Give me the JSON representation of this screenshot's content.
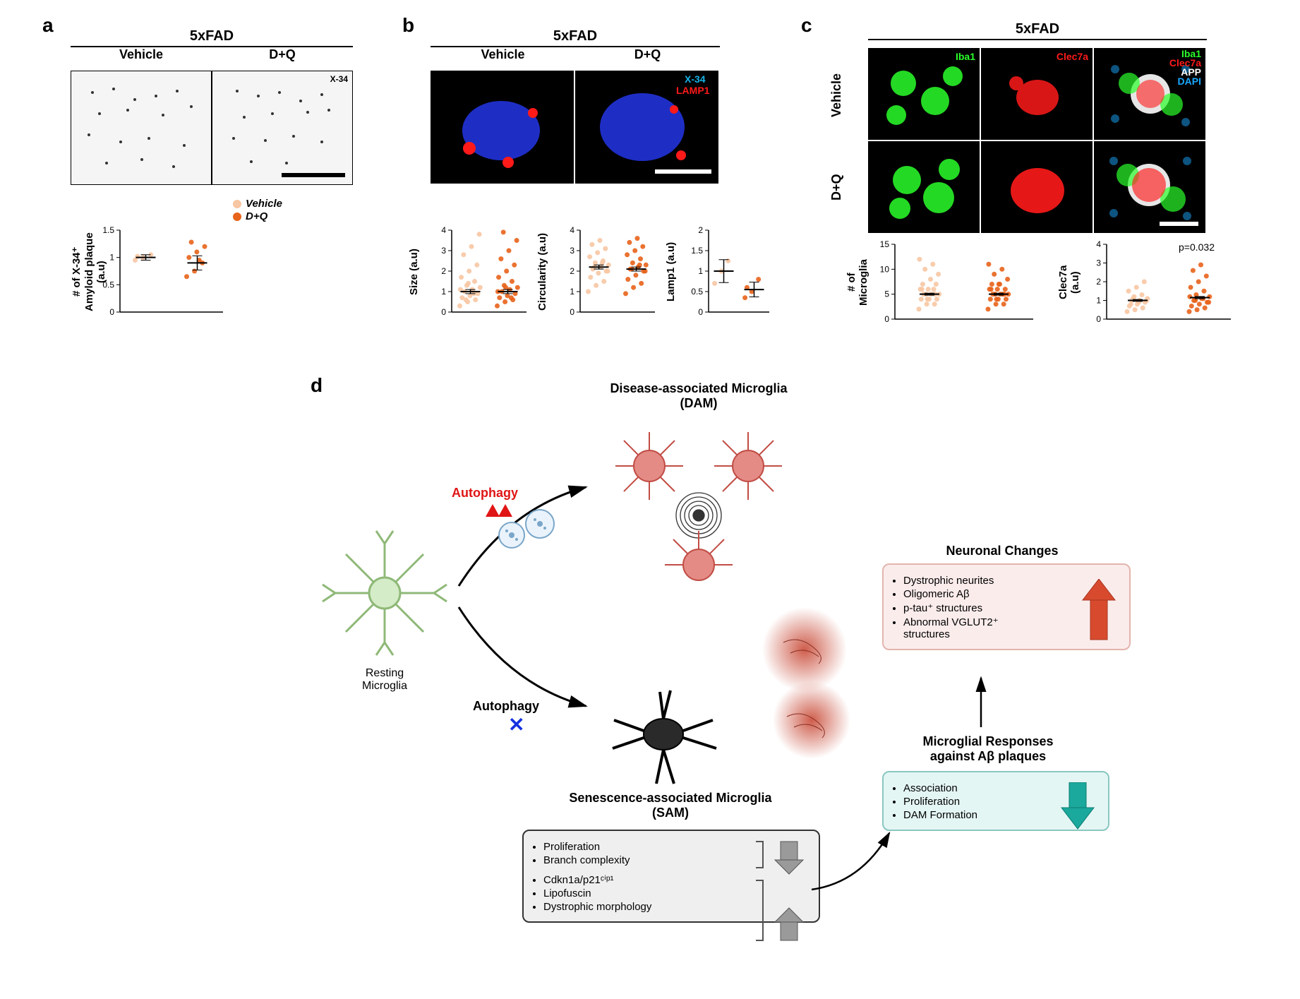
{
  "panelA": {
    "label": "a",
    "title": "5xFAD",
    "conditions": [
      "Vehicle",
      "D+Q"
    ],
    "stain_label": "X-34",
    "legend": {
      "vehicle": {
        "label": "Vehicle",
        "color": "#f7c6a3"
      },
      "dq": {
        "label": "D+Q",
        "color": "#e8631b"
      }
    },
    "chart": {
      "ylabel": "# of X-34⁺\nAmyloid plaque (a.u)",
      "ylim": [
        0,
        1.5
      ],
      "yticks": [
        0,
        0.5,
        1.0,
        1.5
      ],
      "series": [
        {
          "name": "Vehicle",
          "color": "#f7c6a3",
          "mean": 1.0,
          "sem": 0.05,
          "points": [
            0.95,
            1.0,
            1.05,
            1.02
          ]
        },
        {
          "name": "D+Q",
          "color": "#e8631b",
          "mean": 0.9,
          "sem": 0.13,
          "points": [
            0.65,
            0.75,
            0.9,
            1.0,
            1.1,
            1.2,
            1.28,
            0.95
          ]
        }
      ]
    }
  },
  "panelB": {
    "label": "b",
    "title": "5xFAD",
    "conditions": [
      "Vehicle",
      "D+Q"
    ],
    "chan_labels": {
      "x34": {
        "text": "X-34",
        "color": "#15b3e8"
      },
      "lamp1": {
        "text": "LAMP1",
        "color": "#ff1a1a"
      }
    },
    "charts": {
      "size": {
        "ylabel": "Size (a.u)",
        "ylim": [
          0,
          4
        ],
        "yticks": [
          0,
          1,
          2,
          3,
          4
        ],
        "series": [
          {
            "color": "#f7c6a3",
            "mean": 1.0,
            "sem": 0.1,
            "points": [
              0.3,
              0.5,
              0.6,
              0.7,
              0.8,
              0.9,
              1.0,
              1.1,
              1.2,
              1.3,
              1.5,
              1.7,
              2.0,
              2.3,
              2.8,
              3.2,
              3.8,
              0.6,
              0.9,
              1.1,
              1.4
            ]
          },
          {
            "color": "#e8631b",
            "mean": 1.0,
            "sem": 0.1,
            "points": [
              0.3,
              0.5,
              0.6,
              0.7,
              0.8,
              0.9,
              1.0,
              1.1,
              1.2,
              1.3,
              1.5,
              1.7,
              2.0,
              2.3,
              2.6,
              3.0,
              3.5,
              3.9,
              0.7,
              1.0,
              1.2
            ]
          }
        ]
      },
      "circ": {
        "ylabel": "Circularity (a.u)",
        "ylim": [
          0,
          4
        ],
        "yticks": [
          0,
          1,
          2,
          3,
          4
        ],
        "series": [
          {
            "color": "#f7c6a3",
            "mean": 2.2,
            "sem": 0.1,
            "points": [
              1.0,
              1.3,
              1.5,
              1.7,
              1.9,
              2.0,
              2.1,
              2.2,
              2.3,
              2.4,
              2.5,
              2.7,
              2.9,
              3.1,
              3.3,
              3.5,
              2.0,
              2.2,
              2.4
            ]
          },
          {
            "color": "#e8631b",
            "mean": 2.1,
            "sem": 0.1,
            "points": [
              0.9,
              1.2,
              1.4,
              1.6,
              1.8,
              2.0,
              2.1,
              2.2,
              2.3,
              2.4,
              2.6,
              2.8,
              3.0,
              3.2,
              3.4,
              3.6,
              2.0,
              2.1,
              2.3
            ]
          }
        ]
      },
      "lamp1": {
        "ylabel": "Lamp1 (a.u)",
        "ylim": [
          0,
          2.0
        ],
        "yticks": [
          0,
          0.5,
          1.0,
          1.5,
          2.0
        ],
        "series": [
          {
            "color": "#f7c6a3",
            "mean": 1.0,
            "sem": 0.28,
            "points": [
              0.7,
              1.0,
              1.25
            ]
          },
          {
            "color": "#e8631b",
            "mean": 0.55,
            "sem": 0.18,
            "points": [
              0.35,
              0.5,
              0.8,
              0.6
            ]
          }
        ]
      }
    }
  },
  "panelC": {
    "label": "c",
    "title": "5xFAD",
    "row_labels": [
      "Vehicle",
      "D+Q"
    ],
    "col_chan": {
      "iba1": {
        "text": "Iba1",
        "color": "#2bff2b"
      },
      "clec7a": {
        "text": "Clec7a",
        "color": "#ff1a1a"
      },
      "merge": [
        {
          "text": "Iba1",
          "color": "#2bff2b"
        },
        {
          "text": "Clec7a",
          "color": "#ff1a1a"
        },
        {
          "text": "APP",
          "color": "#ffffff"
        },
        {
          "text": "DAPI",
          "color": "#19a7ff"
        }
      ]
    },
    "charts": {
      "microglia": {
        "ylabel": "# of\nMicroglia",
        "ylim": [
          0,
          15
        ],
        "yticks": [
          0,
          5,
          10,
          15
        ],
        "series": [
          {
            "color": "#f7c6a3",
            "mean": 5.0,
            "sem": 0.2,
            "points": [
              2,
              3,
              3,
              4,
              4,
              4,
              5,
              5,
              5,
              5,
              6,
              6,
              6,
              7,
              7,
              8,
              9,
              10,
              11,
              12,
              4,
              5,
              6
            ]
          },
          {
            "color": "#e8631b",
            "mean": 5.0,
            "sem": 0.2,
            "points": [
              2,
              3,
              3,
              4,
              4,
              4,
              5,
              5,
              5,
              5,
              5,
              6,
              6,
              6,
              7,
              7,
              8,
              9,
              10,
              11,
              4,
              5,
              6,
              7
            ]
          }
        ]
      },
      "clec7a": {
        "ylabel": "Clec7a\n(a.u)",
        "ylim": [
          0,
          4
        ],
        "yticks": [
          0,
          1,
          2,
          3,
          4
        ],
        "pval": "p=0.032",
        "series": [
          {
            "color": "#f7c6a3",
            "mean": 1.0,
            "sem": 0.05,
            "points": [
              0.4,
              0.5,
              0.6,
              0.7,
              0.8,
              0.9,
              1.0,
              1.0,
              1.1,
              1.2,
              1.3,
              1.5,
              1.7,
              2.0,
              0.8,
              0.9,
              1.0,
              1.1
            ]
          },
          {
            "color": "#e8631b",
            "mean": 1.15,
            "sem": 0.06,
            "points": [
              0.4,
              0.5,
              0.6,
              0.7,
              0.8,
              0.9,
              1.0,
              1.1,
              1.2,
              1.3,
              1.5,
              1.7,
              2.0,
              2.3,
              2.6,
              2.9,
              0.9,
              1.0,
              1.1,
              1.2
            ]
          }
        ]
      }
    }
  },
  "panelD": {
    "label": "d",
    "resting_label": "Resting\nMicroglia",
    "autophagy_up": {
      "text": "Autophagy",
      "color": "#e01515"
    },
    "autophagy_x": {
      "text": "Autophagy",
      "x_color": "#1531e0"
    },
    "dam_title": "Disease-associated Microglia\n(DAM)",
    "sam_title": "Senescence-associated Microglia\n(SAM)",
    "sam_box": {
      "down": [
        "Proliferation",
        "Branch complexity"
      ],
      "up": [
        "Cdkn1a/p21ᶜⁱᵖ¹",
        "Lipofuscin",
        "Dystrophic morphology"
      ]
    },
    "resp_title": "Microglial Responses\nagainst Aβ plaques",
    "resp_box": {
      "items": [
        "Association",
        "Proliferation",
        "DAM Formation"
      ],
      "arrow_color": "#1aa99c",
      "bg": "#e4f6f4"
    },
    "neuro_title": "Neuronal Changes",
    "neuro_box": {
      "items": [
        "Dystrophic neurites",
        "Oligomeric Aβ",
        "p-tau⁺ structures",
        "Abnormal VGLUT2⁺\nstructures"
      ],
      "arrow_color": "#d84a2e",
      "bg": "#fbecec"
    }
  }
}
